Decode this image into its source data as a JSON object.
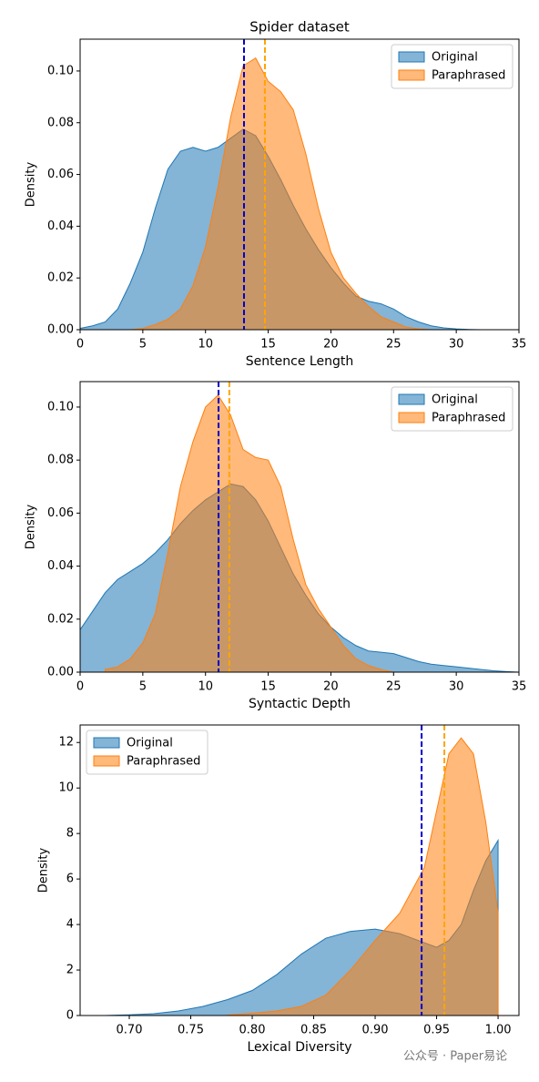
{
  "chart_data": [
    {
      "type": "area",
      "title": "Spider dataset",
      "x_label": "Sentence Length",
      "y_label": "Density",
      "x": [
        0,
        1,
        2,
        3,
        4,
        5,
        6,
        7,
        8,
        9,
        10,
        11,
        12,
        13,
        14,
        15,
        16,
        17,
        18,
        19,
        20,
        21,
        22,
        23,
        24,
        25,
        26,
        27,
        28,
        29,
        30,
        31,
        32
      ],
      "series": [
        {
          "name": "Original",
          "color": "#1f77b4",
          "values": [
            0.0005,
            0.0015,
            0.003,
            0.008,
            0.018,
            0.03,
            0.047,
            0.062,
            0.069,
            0.0705,
            0.069,
            0.0705,
            0.074,
            0.0775,
            0.075,
            0.067,
            0.058,
            0.048,
            0.039,
            0.031,
            0.024,
            0.018,
            0.013,
            0.011,
            0.01,
            0.008,
            0.005,
            0.003,
            0.0015,
            0.0007,
            0.0003,
            0.0001,
            0
          ]
        },
        {
          "name": "Paraphrased",
          "color": "#ff7f0e",
          "values": [
            null,
            null,
            null,
            null,
            0,
            0.0005,
            0.002,
            0.004,
            0.008,
            0.017,
            0.032,
            0.055,
            0.082,
            0.102,
            0.105,
            0.096,
            0.092,
            0.085,
            0.068,
            0.047,
            0.03,
            0.02,
            0.014,
            0.009,
            0.005,
            0.003,
            0.001,
            0.0003,
            0,
            null,
            null,
            null,
            null
          ]
        }
      ],
      "mean_lines": [
        {
          "value": 13.07,
          "color": "#0000cc"
        },
        {
          "value": 14.74,
          "color": "#ffa500"
        }
      ],
      "xlim": [
        0,
        35
      ],
      "xticks": [
        0,
        5,
        10,
        15,
        20,
        25,
        30,
        35
      ],
      "ylim": [
        0,
        0.1123
      ],
      "yticks": [
        {
          "value": 0,
          "label": "0.00"
        },
        {
          "value": 0.02,
          "label": "0.02"
        },
        {
          "value": 0.04,
          "label": "0.04"
        },
        {
          "value": 0.06,
          "label": "0.06"
        },
        {
          "value": 0.08,
          "label": "0.08"
        },
        {
          "value": 0.1,
          "label": "0.10"
        }
      ],
      "legend": "upper right"
    },
    {
      "type": "area",
      "x_label": "Syntactic Depth",
      "y_label": "Density",
      "x": [
        0,
        1,
        2,
        3,
        4,
        5,
        6,
        7,
        8,
        9,
        10,
        11,
        12,
        13,
        14,
        15,
        16,
        17,
        18,
        19,
        20,
        21,
        22,
        23,
        24,
        25,
        26,
        27,
        28,
        29,
        30,
        31,
        32,
        33,
        34,
        35
      ],
      "series": [
        {
          "name": "Original",
          "color": "#1f77b4",
          "values": [
            0.016,
            0.023,
            0.03,
            0.035,
            0.038,
            0.041,
            0.045,
            0.05,
            0.056,
            0.061,
            0.065,
            0.068,
            0.071,
            0.07,
            0.065,
            0.057,
            0.047,
            0.037,
            0.029,
            0.022,
            0.017,
            0.013,
            0.01,
            0.008,
            0.0075,
            0.007,
            0.0055,
            0.004,
            0.003,
            0.0025,
            0.002,
            0.0015,
            0.001,
            0.0005,
            0.0002,
            0
          ]
        },
        {
          "name": "Paraphrased",
          "color": "#ff7f0e",
          "values": [
            null,
            null,
            0.001,
            0.002,
            0.005,
            0.011,
            0.022,
            0.045,
            0.07,
            0.087,
            0.1,
            0.1045,
            0.097,
            0.084,
            0.081,
            0.08,
            0.07,
            0.05,
            0.033,
            0.024,
            0.017,
            0.01,
            0.005,
            0.0025,
            0.001,
            0,
            null,
            null,
            null,
            null,
            null,
            null,
            null,
            null,
            null,
            null
          ]
        }
      ],
      "mean_lines": [
        {
          "value": 11.04,
          "color": "#0000cc"
        },
        {
          "value": 11.9,
          "color": "#ffa500"
        }
      ],
      "xlim": [
        0,
        35
      ],
      "xticks": [
        0,
        5,
        10,
        15,
        20,
        25,
        30,
        35
      ],
      "ylim": [
        0,
        0.1096
      ],
      "yticks": [
        {
          "value": 0,
          "label": "0.00"
        },
        {
          "value": 0.02,
          "label": "0.02"
        },
        {
          "value": 0.04,
          "label": "0.04"
        },
        {
          "value": 0.06,
          "label": "0.06"
        },
        {
          "value": 0.08,
          "label": "0.08"
        },
        {
          "value": 0.1,
          "label": "0.10"
        }
      ],
      "legend": "upper right"
    },
    {
      "type": "area",
      "x_label": "Lexical Diversity",
      "y_label": "Density",
      "x": [
        0.68,
        0.7,
        0.72,
        0.74,
        0.76,
        0.78,
        0.8,
        0.82,
        0.84,
        0.86,
        0.88,
        0.9,
        0.92,
        0.94,
        0.95,
        0.96,
        0.97,
        0.98,
        0.99,
        1.0
      ],
      "series": [
        {
          "name": "Original",
          "color": "#1f77b4",
          "values": [
            0,
            0.03,
            0.08,
            0.2,
            0.4,
            0.7,
            1.1,
            1.8,
            2.7,
            3.4,
            3.7,
            3.8,
            3.6,
            3.2,
            3.0,
            3.3,
            4.0,
            5.5,
            6.8,
            7.7
          ]
        },
        {
          "name": "Paraphrased",
          "color": "#ff7f0e",
          "values": [
            null,
            null,
            null,
            null,
            null,
            0.02,
            0.1,
            0.2,
            0.4,
            0.9,
            2.0,
            3.3,
            4.5,
            6.5,
            9,
            11.5,
            12.2,
            11.5,
            8.5,
            4.5
          ]
        }
      ],
      "mean_lines": [
        {
          "value": 0.9378,
          "color": "#0000cc"
        },
        {
          "value": 0.9563,
          "color": "#ffa500"
        }
      ],
      "xlim": [
        0.66,
        1.017
      ],
      "xticks": [
        {
          "value": 0.7,
          "label": "0.70"
        },
        {
          "value": 0.75,
          "label": "0.75"
        },
        {
          "value": 0.8,
          "label": "0.80"
        },
        {
          "value": 0.85,
          "label": "0.85"
        },
        {
          "value": 0.9,
          "label": "0.90"
        },
        {
          "value": 0.95,
          "label": "0.95"
        },
        {
          "value": 1.0,
          "label": "1.00"
        }
      ],
      "ylim": [
        0,
        12.77
      ],
      "yticks": [
        0,
        2,
        4,
        6,
        8,
        10,
        12
      ],
      "legend": "upper left"
    }
  ],
  "watermark": "公众号 · Paper易论"
}
